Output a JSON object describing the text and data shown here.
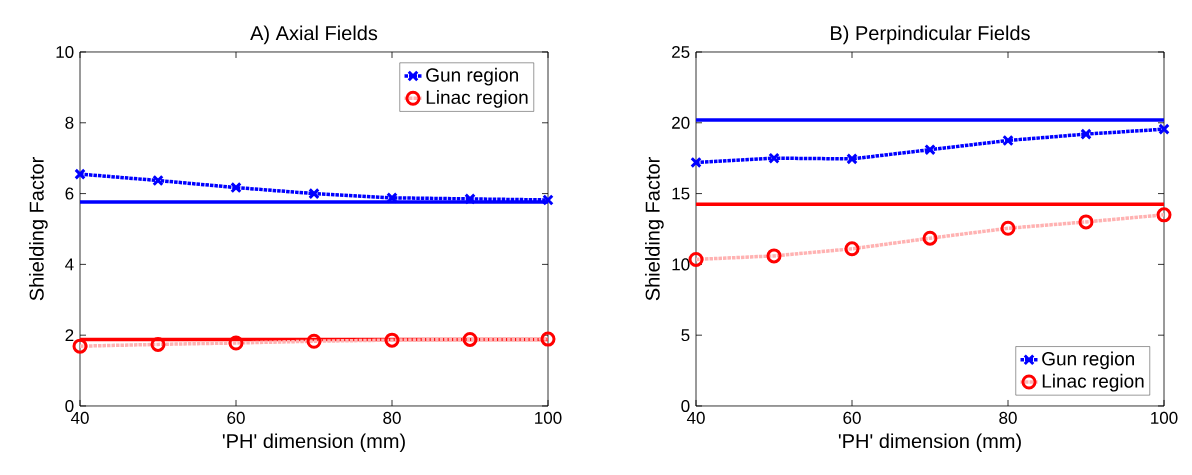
{
  "chart_data": [
    {
      "type": "line",
      "title": "A) Axial Fields",
      "xlabel": "'PH' dimension (mm)",
      "ylabel": "Shielding Factor",
      "x": [
        40,
        50,
        60,
        70,
        80,
        90,
        100
      ],
      "series": [
        {
          "name": "Gun region",
          "color": "#0000ff",
          "marker": "cross",
          "values": [
            6.55,
            6.37,
            6.17,
            6.0,
            5.88,
            5.85,
            5.82
          ]
        },
        {
          "name": "Linac region",
          "color": "#ff0000",
          "marker": "circle",
          "values": [
            1.69,
            1.74,
            1.78,
            1.83,
            1.86,
            1.88,
            1.89
          ]
        }
      ],
      "ref_lines": [
        {
          "axis": "y",
          "value": 5.76,
          "color": "#0000ff"
        },
        {
          "axis": "y",
          "value": 1.88,
          "color": "#ff0000"
        }
      ],
      "line_style": "dotted",
      "xlim": [
        40,
        100
      ],
      "xticks": [
        40,
        60,
        80,
        100
      ],
      "ylim": [
        0,
        10
      ],
      "yticks": [
        0,
        2,
        4,
        6,
        8,
        10
      ],
      "grid": false,
      "legend": "top right"
    },
    {
      "type": "line",
      "title": "B) Perpindicular Fields",
      "xlabel": "'PH' dimension (mm)",
      "ylabel": "Shielding Factor",
      "x": [
        40,
        50,
        60,
        70,
        80,
        90,
        100
      ],
      "series": [
        {
          "name": "Gun region",
          "color": "#0000ff",
          "marker": "cross",
          "values": [
            17.2,
            17.5,
            17.45,
            18.1,
            18.75,
            19.2,
            19.55
          ]
        },
        {
          "name": "Linac region",
          "color": "#ff0000",
          "marker": "circle",
          "values": [
            10.35,
            10.6,
            11.1,
            11.85,
            12.55,
            13.0,
            13.5
          ]
        }
      ],
      "ref_lines": [
        {
          "axis": "y",
          "value": 20.2,
          "color": "#0000ff"
        },
        {
          "axis": "y",
          "value": 14.25,
          "color": "#ff0000"
        }
      ],
      "line_style": "dotted",
      "xlim": [
        40,
        100
      ],
      "xticks": [
        40,
        60,
        80,
        100
      ],
      "ylim": [
        0,
        25
      ],
      "yticks": [
        0,
        5,
        10,
        15,
        20,
        25
      ],
      "grid": false,
      "legend": "bottom right"
    }
  ]
}
